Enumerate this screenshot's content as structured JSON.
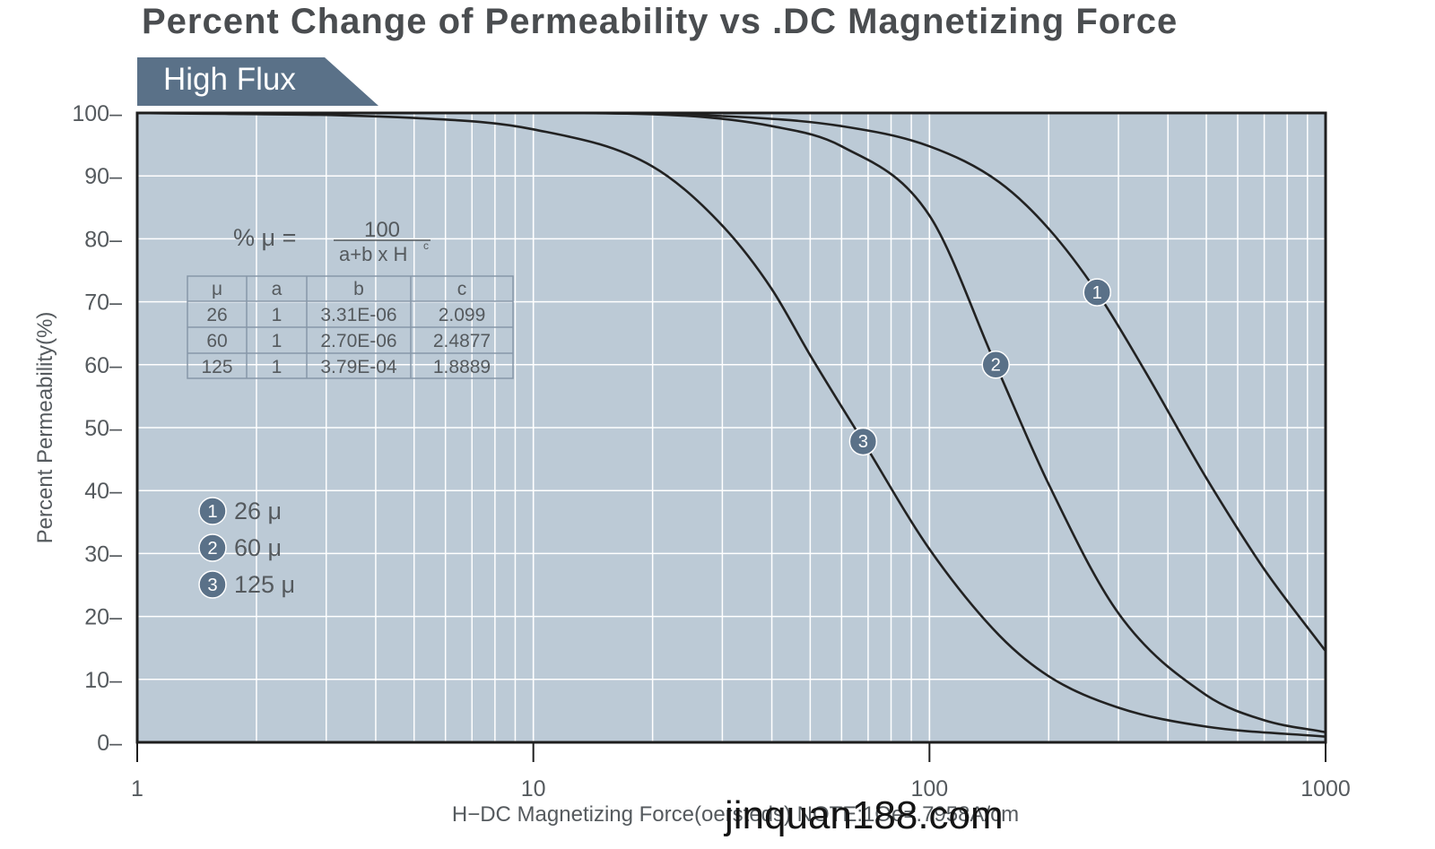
{
  "title": "Percent Change of Permeability vs .DC Magnetizing Force",
  "series_tab": "High Flux",
  "watermark": "jinquan188.com",
  "colors": {
    "plot_bg": "#bccad6",
    "grid": "#ffffff",
    "axis": "#1e1e1e",
    "curve": "#222222",
    "tab_bg": "#5a7188",
    "badge": "#5a7188",
    "text": "#555a5e"
  },
  "formula": {
    "lhs": "% μ =",
    "numerator": "100",
    "denominator": "a+b x H",
    "exponent": "c"
  },
  "coef_table": {
    "headers": [
      "μ",
      "a",
      "b",
      "c"
    ],
    "rows": [
      [
        "26",
        "1",
        "3.31E-06",
        "2.099"
      ],
      [
        "60",
        "1",
        "2.70E-06",
        "2.4877"
      ],
      [
        "125",
        "1",
        "3.79E-04",
        "1.8889"
      ]
    ]
  },
  "legend": [
    {
      "marker": "1",
      "label": "26 μ"
    },
    {
      "marker": "2",
      "label": "60 μ"
    },
    {
      "marker": "3",
      "label": "125 μ"
    }
  ],
  "chart_data": {
    "type": "line",
    "title": "Percent Change of Permeability vs .DC Magnetizing Force",
    "xlabel": "H−DC Magnetizing Force(oersteds) NOTE:1Oe=.7958A/cm",
    "ylabel": "Percent Permeability(%)",
    "xscale": "log",
    "xlim": [
      1,
      1000
    ],
    "ylim": [
      0,
      100
    ],
    "xticks": [
      1,
      10,
      100,
      1000
    ],
    "xtick_labels": [
      "1",
      "10",
      "100",
      "1000"
    ],
    "yticks": [
      0,
      10,
      20,
      30,
      40,
      50,
      60,
      70,
      80,
      90,
      100
    ],
    "ytick_labels": [
      "0–",
      "10–",
      "20–",
      "30–",
      "40–",
      "50–",
      "60–",
      "70–",
      "80–",
      "90–",
      "100–"
    ],
    "grid": true,
    "series": [
      {
        "name": "26 μ",
        "marker": "1",
        "formula": {
          "a": 1,
          "b": 3.31e-06,
          "c": 2.099
        },
        "x": [
          1,
          10,
          30,
          60,
          100,
          150,
          200,
          265,
          350,
          500,
          700,
          1000
        ],
        "y": [
          100,
          100,
          99.5,
          97.9,
          94.7,
          89.0,
          81.6,
          71.5,
          59.0,
          42.0,
          27.5,
          14.5
        ],
        "marker_at": {
          "x": 265,
          "y": 71.5
        }
      },
      {
        "name": "60 μ",
        "marker": "2",
        "formula": {
          "a": 1,
          "b": 2.7e-06,
          "c": 2.4877
        },
        "x": [
          1,
          10,
          20,
          40,
          60,
          100,
          147,
          200,
          300,
          500,
          700,
          1000
        ],
        "y": [
          100,
          100,
          99.8,
          97.9,
          94.7,
          83.7,
          60.0,
          41.0,
          20.5,
          7.5,
          3.5,
          1.6
        ],
        "marker_at": {
          "x": 147,
          "y": 60.0
        }
      },
      {
        "name": "125 μ",
        "marker": "3",
        "formula": {
          "a": 1,
          "b": 0.000379,
          "c": 1.8889
        },
        "x": [
          1,
          5,
          10,
          20,
          30,
          40,
          50,
          68,
          100,
          150,
          200,
          300,
          500,
          1000
        ],
        "y": [
          100,
          99.2,
          97.4,
          91.5,
          82.1,
          72.0,
          61.5,
          47.8,
          30.7,
          17.0,
          10.5,
          5.5,
          2.5,
          0.9
        ],
        "marker_at": {
          "x": 68,
          "y": 47.8
        }
      }
    ]
  }
}
